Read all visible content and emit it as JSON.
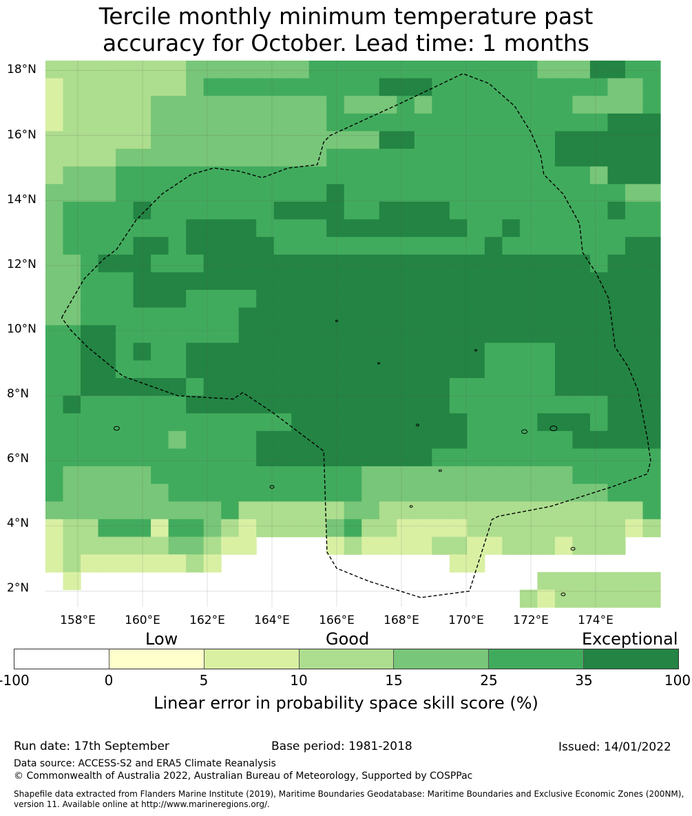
{
  "title": {
    "line1": "Tercile monthly minimum temperature past",
    "line2": "accuracy for October. Lead time: 1 months"
  },
  "map": {
    "lat_labels": [
      "18°N",
      "16°N",
      "14°N",
      "12°N",
      "10°N",
      "8°N",
      "6°N",
      "4°N",
      "2°N"
    ],
    "lon_labels": [
      "158°E",
      "160°E",
      "162°E",
      "164°E",
      "166°E",
      "168°E",
      "170°E",
      "172°E",
      "174°E"
    ],
    "extent": {
      "lon_min": 157.0,
      "lon_max": 176.0,
      "lat_min": 1.5,
      "lat_max": 18.3
    },
    "cell_rows_top_to_bottom": [
      "11111111222222233333333333332224433",
      "01111111233333333334443333333333223",
      "01111122222222223222323333333322223",
      "01111122222222223333333333333333444",
      "11111122222222222224433333333444444",
      "11112222222222223333333333333444444",
      "12223333333333333333333333333332444",
      "22223333333333334333333333333333322",
      "23333433333334444334444333333333433",
      "23333333444433334444444433433333333",
      "23333443444443333333333334333333344",
      "22344433344444444444444444444443444",
      "22333444444444444444444444444444444",
      "22333444333344444444444444444444444",
      "22333333333444444444444444444444444",
      "33443333333444444444444444444444444",
      "33443433444444444444444443333444444",
      "33443333444444444444444443333444444",
      "33444444344444444444444333333444444",
      "34333333444444444444444333333333444",
      "33333333333333444444444433334443444",
      "33333332333344444444444433333344444",
      "33333333333344444444443333333333333",
      "32222233333333333322222222222233333",
      "32222223333333333322222222222222333",
      "22222222223111111221111111111111113",
      "01133303321011112311000011111111101",
      "01111112210099990100001100111011199",
      "01000000109999999999999009999999999",
      "90999999999999999999999999991111111",
      "99999999999999999999999999910111111"
    ],
    "colors": {
      "n100_0": "#ffffff",
      "c0_5": "#ffffcc",
      "c5_10": "#d9f0a3",
      "c10_15": "#addd8e",
      "c15_25": "#78c679",
      "c25_35": "#41ab5d",
      "c35_100": "#238443"
    },
    "boundary": [
      [
        157.5,
        10.4
      ],
      [
        158.2,
        11.6
      ],
      [
        158.8,
        12.2
      ],
      [
        159.2,
        12.5
      ],
      [
        159.8,
        13.4
      ],
      [
        160.6,
        14.2
      ],
      [
        161.5,
        14.8
      ],
      [
        162.2,
        15.0
      ],
      [
        163.0,
        14.9
      ],
      [
        163.7,
        14.7
      ],
      [
        164.5,
        15.0
      ],
      [
        165.4,
        15.1
      ],
      [
        165.6,
        15.8
      ],
      [
        165.8,
        16.0
      ],
      [
        168.0,
        17.0
      ],
      [
        169.9,
        17.9
      ],
      [
        170.7,
        17.6
      ],
      [
        171.5,
        16.9
      ],
      [
        172.0,
        16.1
      ],
      [
        172.3,
        15.4
      ],
      [
        172.4,
        14.8
      ],
      [
        173.0,
        14.2
      ],
      [
        173.5,
        13.3
      ],
      [
        173.6,
        12.4
      ],
      [
        174.0,
        11.8
      ],
      [
        174.4,
        11.0
      ],
      [
        174.5,
        10.3
      ],
      [
        174.6,
        9.5
      ],
      [
        175.0,
        8.9
      ],
      [
        175.3,
        8.2
      ],
      [
        175.5,
        7.2
      ],
      [
        175.6,
        6.7
      ],
      [
        175.7,
        6.0
      ],
      [
        175.6,
        5.6
      ],
      [
        174.5,
        5.2
      ],
      [
        172.6,
        4.6
      ],
      [
        171.0,
        4.3
      ],
      [
        170.8,
        4.2
      ],
      [
        170.1,
        2.0
      ],
      [
        168.6,
        1.8
      ],
      [
        167.0,
        2.3
      ],
      [
        166.0,
        2.7
      ],
      [
        165.7,
        3.2
      ],
      [
        165.6,
        6.3
      ],
      [
        164.0,
        7.5
      ],
      [
        163.1,
        8.1
      ],
      [
        162.8,
        7.9
      ],
      [
        161.1,
        8.0
      ],
      [
        159.4,
        8.6
      ],
      [
        158.3,
        9.5
      ],
      [
        157.8,
        10.0
      ],
      [
        157.5,
        10.4
      ]
    ]
  },
  "legend": {
    "category_labels": [
      "Low",
      "Good",
      "Exceptional"
    ],
    "tick_labels": [
      "-100",
      "0",
      "5",
      "10",
      "15",
      "25",
      "35",
      "100"
    ],
    "title": "Linear error in probability space skill score (%)"
  },
  "footer": {
    "run_date": "Run date: 17th September",
    "base_period": "Base period: 1981-2018",
    "issued": "Issued: 14/01/2022",
    "data_source": "Data source: ACCESS-S2 and ERA5 Climate Reanalysis",
    "copyright": "© Commonwealth of Australia 2022, Australian Bureau of Meteorology, Supported by COSPPac",
    "shapefile_line1": "Shapefile data extracted from Flanders Marine Institute (2019), Maritime Boundaries Geodatabase: Maritime Boundaries and Exclusive Economic Zones (200NM),",
    "shapefile_line2": "version 11. Available online at http://www.marineregions.org/."
  }
}
